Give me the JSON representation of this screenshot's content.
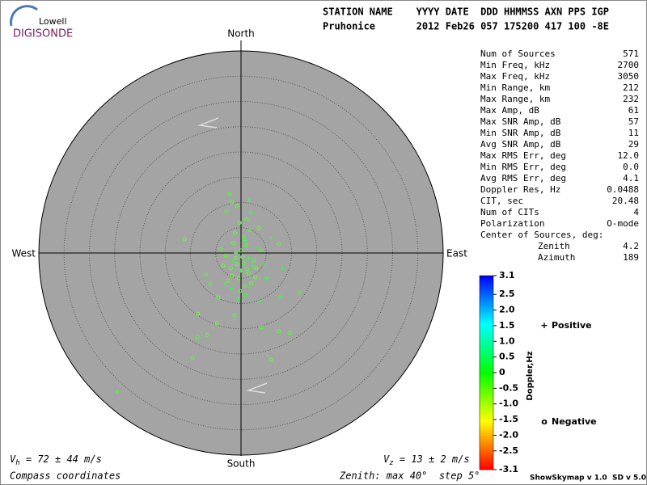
{
  "header": {
    "line1": "STATION NAME    YYYY DATE  DDD HHMMSS AXN PPS IGP",
    "line2": "Pruhonice       2012 Feb26 057 175200 417 100 -8E"
  },
  "logo": {
    "top": "Lowell",
    "bottom": "DIGISONDE"
  },
  "stats": [
    [
      "Num of Sources",
      "571"
    ],
    [
      "Min Freq, kHz",
      "2700"
    ],
    [
      "Max Freq, kHz",
      "3050"
    ],
    [
      "Min Range, km",
      "212"
    ],
    [
      "Max Range, km",
      "232"
    ],
    [
      "Max Amp, dB",
      "61"
    ],
    [
      "Max SNR Amp, dB",
      "57"
    ],
    [
      "Min SNR Amp, dB",
      "11"
    ],
    [
      "Avg SNR Amp, dB",
      "29"
    ],
    [
      "Max RMS Err, deg",
      "12.0"
    ],
    [
      "Min RMS Err, deg",
      "0.0"
    ],
    [
      "Avg RMS Err, deg",
      "4.1"
    ],
    [
      "Doppler Res, Hz",
      "0.0488"
    ],
    [
      "CIT, sec",
      "20.48"
    ],
    [
      "Num of CITs",
      "4"
    ],
    [
      "Polarization",
      "O-mode"
    ]
  ],
  "center": {
    "title": "Center of Sources, deg:",
    "rows": [
      [
        "Zenith",
        "4.2"
      ],
      [
        "Azimuth",
        "189"
      ]
    ]
  },
  "footer": {
    "vh": {
      "symbol": "V",
      "sub": "h",
      "text": " = 72 ± 44 m/s"
    },
    "vz": {
      "symbol": "V",
      "sub": "z",
      "text": " = 13 ± 2 m/s"
    },
    "coords": "Compass coordinates",
    "zenith": "Zenith: max 40°  step 5°",
    "version": "ShowSkymap v 1.0  SD v 5.0"
  },
  "chart_data": {
    "type": "scatter",
    "compass": {
      "north": "North",
      "south": "South",
      "east": "East",
      "west": "West"
    },
    "rlim": [
      0,
      40
    ],
    "rings": [
      5,
      10,
      15,
      20,
      25,
      30,
      35
    ],
    "series": [
      {
        "name": "Positive",
        "marker": "+",
        "color": "#0000cc",
        "x": [
          3.0,
          1.5,
          -1.0,
          0.0,
          5.0,
          -2.0,
          3.8,
          5.2,
          7.8,
          8.2,
          2.0,
          1.6,
          -0.5,
          4.5,
          -3.2,
          0.8,
          2.3,
          -1.6,
          6.0,
          1.0
        ],
        "y": [
          1.0,
          -1.0,
          0.0,
          -3.5,
          -5.0,
          -7.0,
          -9.5,
          -20.3,
          -8.6,
          -3.0,
          8.0,
          10.5,
          -9.0,
          -2.2,
          -6.0,
          2.5,
          -2.5,
          -1.6,
          3.0,
          -8.2
        ],
        "doppler": [
          0.1,
          0.2,
          0.1,
          0.1,
          0.2,
          0.1,
          0.2,
          0.1,
          0.1,
          0.2,
          0.1,
          0.1,
          0.2,
          0.1,
          0.1,
          0.2,
          0.1,
          0.1,
          0.2,
          0.1
        ]
      },
      {
        "name": "Negative",
        "marker": "o",
        "color": "#cc0000",
        "x": [
          -24.5,
          -11.2,
          -9.6,
          -8.6,
          -6.7,
          -4.8,
          -2.2,
          -1.8,
          -0.8,
          -2.9,
          1.1,
          3.5,
          7.5,
          11.5,
          7.5,
          9.6,
          5.9,
          4.0,
          -1.3,
          -6.9,
          -6.1,
          -4.5,
          -8.5,
          -1.0,
          0.5,
          -2.0,
          1.5,
          -0.5,
          2.5,
          -3.0,
          0.0,
          1.0,
          -1.5,
          3.0,
          -2.5,
          0.8,
          -0.2,
          2.0,
          -1.8,
          1.2,
          -0.8,
          0.3,
          4.0,
          -3.5,
          2.8,
          -1.2,
          0.5,
          -0.3,
          1.8,
          -4.0
        ],
        "y": [
          -27.5,
          2.7,
          -20.8,
          -16.6,
          -16.2,
          -13.9,
          11.7,
          10.1,
          9.3,
          8.2,
          6.7,
          5.0,
          1.8,
          -7.8,
          -15.5,
          -15.8,
          -21.1,
          -14.7,
          -12.3,
          -4.3,
          -6.2,
          -8.8,
          -12.0,
          -1.0,
          -2.0,
          -3.0,
          -4.0,
          -5.0,
          -1.5,
          -0.5,
          0.5,
          1.5,
          2.0,
          -3.0,
          -5.5,
          -6.5,
          -7.5,
          -6.0,
          -4.5,
          -3.2,
          -2.2,
          -0.8,
          0.5,
          -2.5,
          -4.8,
          4.0,
          3.2,
          6.0,
          4.5,
          0.8
        ],
        "doppler": [
          -0.3,
          -0.4,
          -0.3,
          -0.2,
          -0.3,
          -0.4,
          -0.2,
          -0.3,
          -0.3,
          -0.2,
          -0.3,
          -0.4,
          -0.3,
          -0.2,
          -0.3,
          -0.3,
          -0.4,
          -0.2,
          -0.3,
          -0.3,
          -0.2,
          -0.3,
          -0.4,
          -0.3,
          -0.2,
          -0.3,
          -0.3,
          -0.4,
          -0.2,
          -0.3,
          -0.3,
          -0.2,
          -0.3,
          -0.4,
          -0.3,
          -0.2,
          -0.3,
          -0.3,
          -0.4,
          -0.2,
          -0.3,
          -0.3,
          -0.2,
          -0.3,
          -0.4,
          -0.3,
          -0.2,
          -0.3,
          -0.3,
          -0.2
        ]
      }
    ],
    "colorbar": {
      "label": "Doppler,Hz",
      "lim": [
        -3.1,
        3.1
      ],
      "ticks": [
        3.1,
        2.5,
        {
          "value": 2,
          "label": "2.0"
        },
        1.5,
        {
          "value": 1,
          "label": "1.0"
        },
        0.5,
        0,
        -0.5,
        {
          "value": -1,
          "label": "-1.0"
        },
        -1.5,
        {
          "value": -2,
          "label": "-2.0"
        },
        -2.5,
        -3.1
      ]
    }
  }
}
